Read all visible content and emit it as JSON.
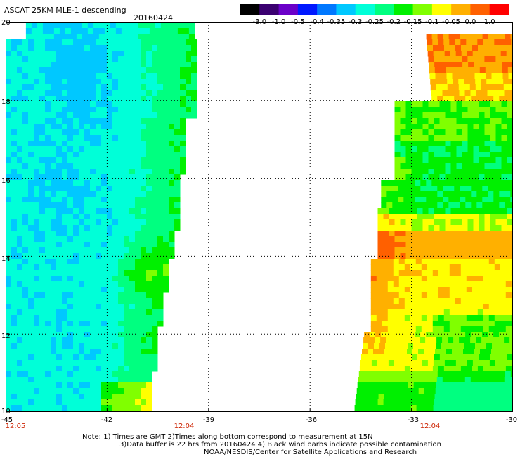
{
  "header": {
    "title": "ASCAT 25KM MLE-1 descending",
    "date": "20160424"
  },
  "colorbar": {
    "labels": [
      "-3.0",
      "-1.0",
      "-0.5",
      "-0.4",
      "-0.35",
      "-0.3",
      "-0.25",
      "-0.2",
      "-0.15",
      "-0.1",
      "-0.05",
      "0.0",
      "1.0"
    ],
    "colors": [
      "#000000",
      "#3a0070",
      "#6a00c8",
      "#0018ff",
      "#0078ff",
      "#00c8ff",
      "#00ffd8",
      "#00ff80",
      "#00f000",
      "#80ff00",
      "#ffff00",
      "#ffb000",
      "#ff6000",
      "#ff0000"
    ]
  },
  "axes": {
    "x_ticks": [
      "-45",
      "-42",
      "-39",
      "-36",
      "-33",
      "-30"
    ],
    "y_ticks": [
      "20",
      "18",
      "16",
      "14",
      "12",
      "10"
    ],
    "time_labels": [
      "12:05",
      "12:04",
      "12:04"
    ]
  },
  "chart_data": {
    "type": "heatmap",
    "xlim": [
      -45,
      -30
    ],
    "ylim": [
      10,
      20
    ],
    "grid": true,
    "colorbar_position": "top-right",
    "swaths": [
      {
        "lon_min": -45,
        "lon_max": -39.6,
        "lat_min": 10,
        "lat_max": 20,
        "dominant_range": "-0.3 to -0.15"
      },
      {
        "lon_min": -34.5,
        "lon_max": -30,
        "lat_min": 10,
        "lat_max": 19.5,
        "dominant_range": "-0.15 to 0.0"
      }
    ]
  },
  "notes": {
    "line1": "Note: 1) Times are GMT 2)Times along bottom correspond to measurement at 15N",
    "line2": "3)Data buffer is 22 hrs from 20160424 4) Black wind barbs indicate possible contamination",
    "line3": "NOAA/NESDIS/Center for Satellite Applications and Research"
  }
}
